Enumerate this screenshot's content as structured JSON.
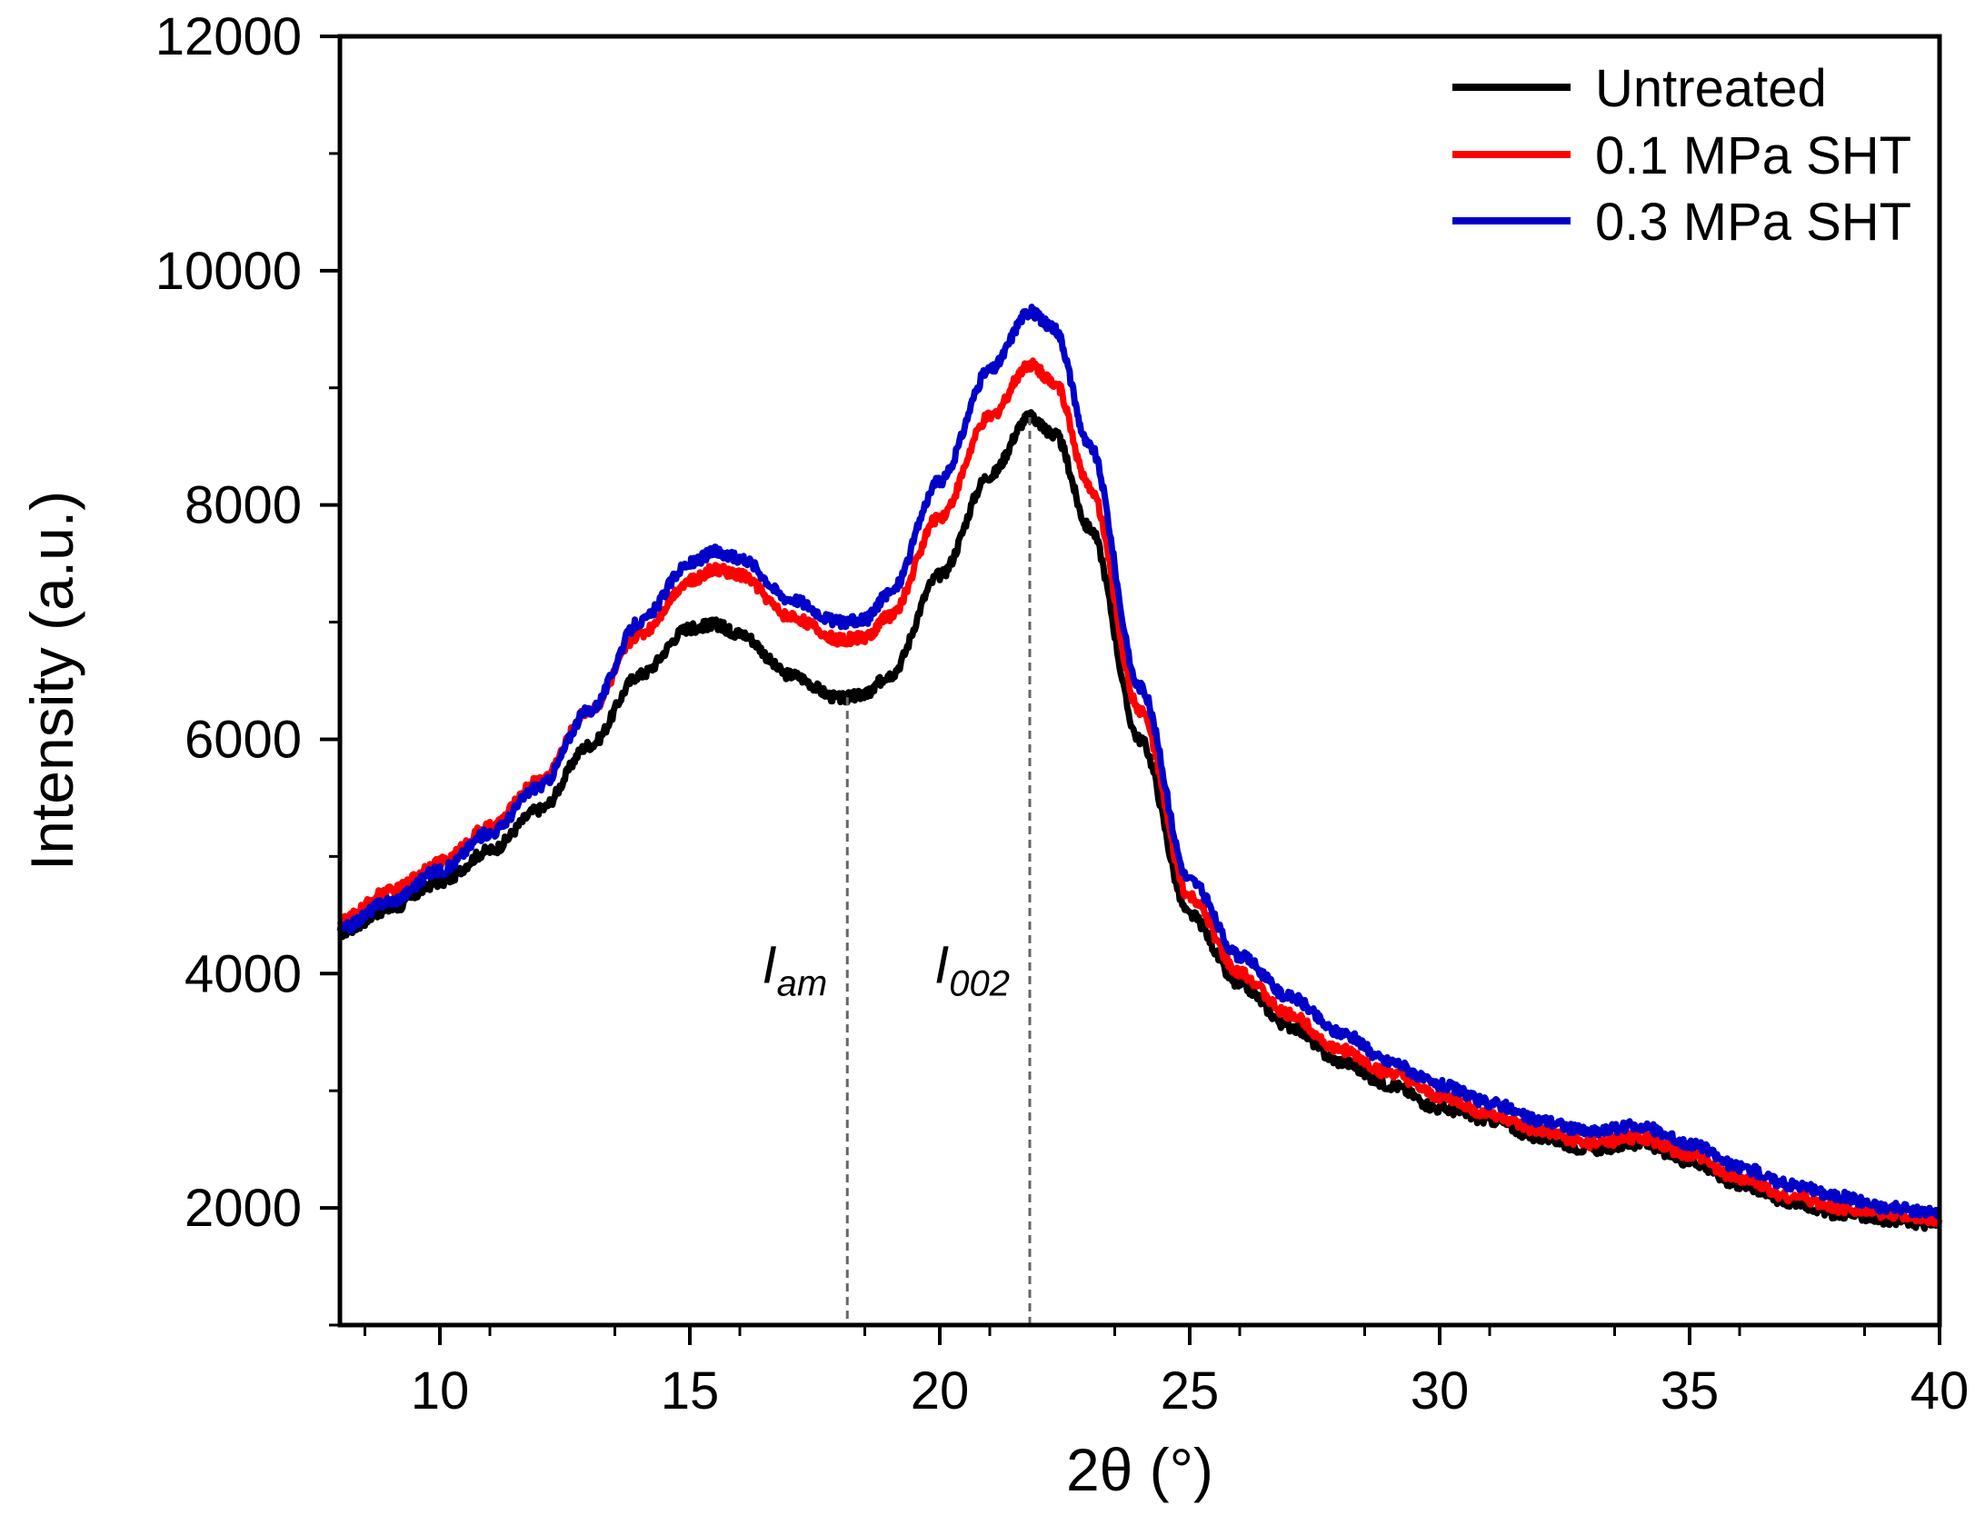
{
  "chart_data": {
    "type": "line",
    "title": "",
    "xlabel": "2θ (°)",
    "ylabel": "Intensity (a.u.)",
    "xlim": [
      8,
      40
    ],
    "ylim": [
      1000,
      12000
    ],
    "xticks": [
      10,
      15,
      20,
      25,
      30,
      35,
      40
    ],
    "yticks": [
      2000,
      4000,
      6000,
      8000,
      10000,
      12000
    ],
    "xtick_labels": [
      "10",
      "15",
      "20",
      "25",
      "30",
      "35",
      "40"
    ],
    "ytick_labels": [
      "2000",
      "4000",
      "6000",
      "8000",
      "10000",
      "12000"
    ],
    "legend_position": "top-right",
    "series": [
      {
        "name": "Untreated",
        "color": "#000000",
        "points": [
          [
            8,
            4350
          ],
          [
            9,
            4550
          ],
          [
            10,
            4780
          ],
          [
            11,
            5050
          ],
          [
            12,
            5400
          ],
          [
            13,
            5950
          ],
          [
            14,
            6550
          ],
          [
            15,
            6950
          ],
          [
            15.5,
            6980
          ],
          [
            16,
            6900
          ],
          [
            17,
            6550
          ],
          [
            18,
            6350
          ],
          [
            18.5,
            6380
          ],
          [
            19,
            6550
          ],
          [
            20,
            7400
          ],
          [
            21,
            8250
          ],
          [
            21.8,
            8750
          ],
          [
            22.3,
            8600
          ],
          [
            23,
            7800
          ],
          [
            24,
            6000
          ],
          [
            25,
            4500
          ],
          [
            26,
            3900
          ],
          [
            27,
            3550
          ],
          [
            28,
            3250
          ],
          [
            29,
            3050
          ],
          [
            30,
            2850
          ],
          [
            31,
            2750
          ],
          [
            32,
            2600
          ],
          [
            33,
            2500
          ],
          [
            34,
            2550
          ],
          [
            35,
            2400
          ],
          [
            36,
            2200
          ],
          [
            37,
            2050
          ],
          [
            38,
            1950
          ],
          [
            39,
            1900
          ],
          [
            40,
            1850
          ]
        ]
      },
      {
        "name": "0.1 MPa SHT",
        "color": "#ff0000",
        "points": [
          [
            8,
            4450
          ],
          [
            9,
            4700
          ],
          [
            10,
            4950
          ],
          [
            11,
            5250
          ],
          [
            12,
            5650
          ],
          [
            13,
            6250
          ],
          [
            14,
            6900
          ],
          [
            15,
            7350
          ],
          [
            15.5,
            7450
          ],
          [
            16,
            7400
          ],
          [
            17,
            7050
          ],
          [
            18,
            6850
          ],
          [
            18.5,
            6870
          ],
          [
            19,
            7050
          ],
          [
            20,
            7900
          ],
          [
            21,
            8750
          ],
          [
            21.8,
            9200
          ],
          [
            22.3,
            9050
          ],
          [
            23,
            8150
          ],
          [
            24,
            6250
          ],
          [
            25,
            4650
          ],
          [
            26,
            4000
          ],
          [
            27,
            3650
          ],
          [
            28,
            3350
          ],
          [
            29,
            3150
          ],
          [
            30,
            2950
          ],
          [
            31,
            2800
          ],
          [
            32,
            2650
          ],
          [
            33,
            2550
          ],
          [
            34,
            2600
          ],
          [
            35,
            2450
          ],
          [
            36,
            2250
          ],
          [
            37,
            2100
          ],
          [
            38,
            2000
          ],
          [
            39,
            1950
          ],
          [
            40,
            1900
          ]
        ]
      },
      {
        "name": "0.3 MPa SHT",
        "color": "#0000c8",
        "points": [
          [
            8,
            4380
          ],
          [
            9,
            4620
          ],
          [
            10,
            4880
          ],
          [
            11,
            5200
          ],
          [
            12,
            5600
          ],
          [
            13,
            6250
          ],
          [
            14,
            7000
          ],
          [
            15,
            7500
          ],
          [
            15.5,
            7600
          ],
          [
            16,
            7550
          ],
          [
            17,
            7200
          ],
          [
            18,
            7000
          ],
          [
            18.5,
            7020
          ],
          [
            19,
            7250
          ],
          [
            20,
            8200
          ],
          [
            21,
            9150
          ],
          [
            21.8,
            9650
          ],
          [
            22.3,
            9500
          ],
          [
            23,
            8500
          ],
          [
            24,
            6450
          ],
          [
            25,
            4800
          ],
          [
            26,
            4150
          ],
          [
            27,
            3800
          ],
          [
            28,
            3500
          ],
          [
            29,
            3250
          ],
          [
            30,
            3050
          ],
          [
            31,
            2900
          ],
          [
            32,
            2750
          ],
          [
            33,
            2650
          ],
          [
            34,
            2700
          ],
          [
            35,
            2550
          ],
          [
            36,
            2350
          ],
          [
            37,
            2200
          ],
          [
            38,
            2100
          ],
          [
            39,
            2000
          ],
          [
            40,
            1950
          ]
        ]
      }
    ],
    "annotations": [
      {
        "main": "I",
        "sub": "am",
        "x": 18.15
      },
      {
        "main": "I",
        "sub": "002",
        "x": 21.8
      }
    ]
  }
}
